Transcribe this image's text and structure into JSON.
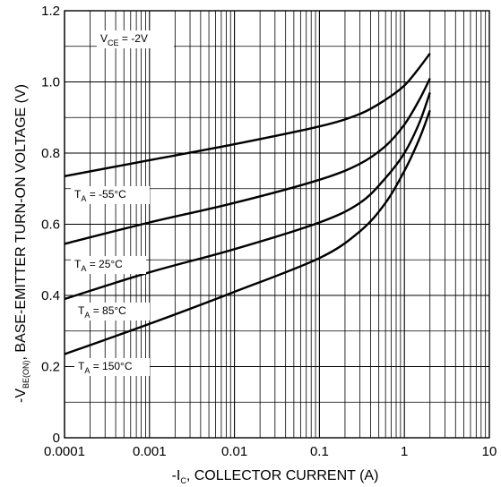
{
  "chart_data": {
    "type": "line",
    "xlabel_main": "-I",
    "xlabel_sub": "C",
    "xlabel_rest": ", COLLECTOR CURRENT (A)",
    "ylabel_main": "-V",
    "ylabel_sub": "BE(ON)",
    "ylabel_rest": ", BASE-EMITTER TURN-ON VOLTAGE (V)",
    "x_scale": "log",
    "xlim": [
      0.0001,
      10
    ],
    "ylim": [
      0,
      1.2
    ],
    "x_ticks": [
      {
        "value": 0.0001,
        "label": "0.0001"
      },
      {
        "value": 0.001,
        "label": "0.001"
      },
      {
        "value": 0.01,
        "label": "0.01"
      },
      {
        "value": 0.1,
        "label": "0.1"
      },
      {
        "value": 1,
        "label": "1"
      },
      {
        "value": 10,
        "label": "10"
      }
    ],
    "y_ticks": [
      {
        "value": 0,
        "label": "0"
      },
      {
        "value": 0.2,
        "label": "0.2"
      },
      {
        "value": 0.4,
        "label": "0.4"
      },
      {
        "value": 0.6,
        "label": "0.6"
      },
      {
        "value": 0.8,
        "label": "0.8"
      },
      {
        "value": 1.0,
        "label": "1.0"
      },
      {
        "value": 1.2,
        "label": "1.2"
      }
    ],
    "grid": true,
    "condition": {
      "main": "V",
      "sub": "CE",
      "rest": " = -2V"
    },
    "series": [
      {
        "name_main": "T",
        "name_sub": "A",
        "name_rest": " = -55°C",
        "x": [
          0.0001,
          0.001,
          0.01,
          0.1,
          0.3,
          0.6,
          1.0,
          1.5,
          2.0
        ],
        "y": [
          0.735,
          0.78,
          0.825,
          0.875,
          0.91,
          0.95,
          0.99,
          1.04,
          1.08
        ]
      },
      {
        "name_main": "T",
        "name_sub": "A",
        "name_rest": " = 25°C",
        "x": [
          0.0001,
          0.001,
          0.01,
          0.1,
          0.3,
          0.6,
          1.0,
          1.5,
          2.0
        ],
        "y": [
          0.545,
          0.605,
          0.66,
          0.725,
          0.77,
          0.82,
          0.88,
          0.95,
          1.01
        ]
      },
      {
        "name_main": "T",
        "name_sub": "A",
        "name_rest": " = 85°C",
        "x": [
          0.0001,
          0.001,
          0.01,
          0.1,
          0.3,
          0.6,
          1.0,
          1.5,
          2.0
        ],
        "y": [
          0.39,
          0.465,
          0.53,
          0.605,
          0.66,
          0.73,
          0.8,
          0.885,
          0.97
        ]
      },
      {
        "name_main": "T",
        "name_sub": "A",
        "name_rest": " = 150°C",
        "x": [
          0.0001,
          0.001,
          0.01,
          0.1,
          0.3,
          0.6,
          1.0,
          1.5,
          2.0
        ],
        "y": [
          0.235,
          0.32,
          0.41,
          0.505,
          0.58,
          0.66,
          0.75,
          0.84,
          0.92
        ]
      }
    ]
  }
}
